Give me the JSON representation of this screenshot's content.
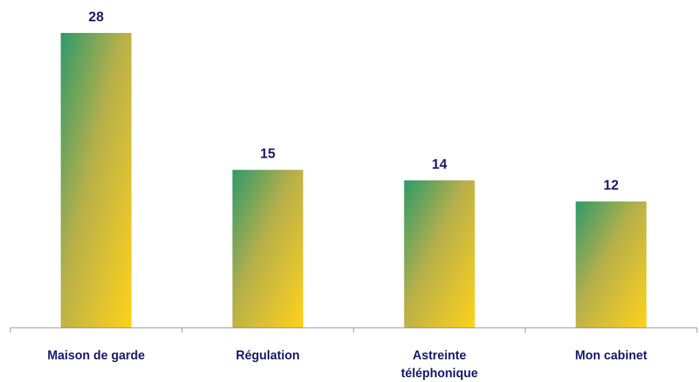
{
  "chart_data": {
    "type": "bar",
    "categories": [
      "Maison de garde",
      "Régulation",
      "Astreinte téléphonique",
      "Mon cabinet"
    ],
    "category_lines": [
      [
        "Maison de garde"
      ],
      [
        "Régulation"
      ],
      [
        "Astreinte",
        "téléphonique"
      ],
      [
        "Mon cabinet"
      ]
    ],
    "values": [
      28,
      15,
      14,
      12
    ],
    "ylim": [
      0,
      28
    ],
    "grid": false,
    "legend": "none",
    "colors": {
      "bar_gradient_start": "#2e9a6a",
      "bar_gradient_end": "#ffd21a",
      "value_label": "#1a1a6e",
      "category_label": "#1a1a6e",
      "axis": "#7f7f7f"
    }
  }
}
